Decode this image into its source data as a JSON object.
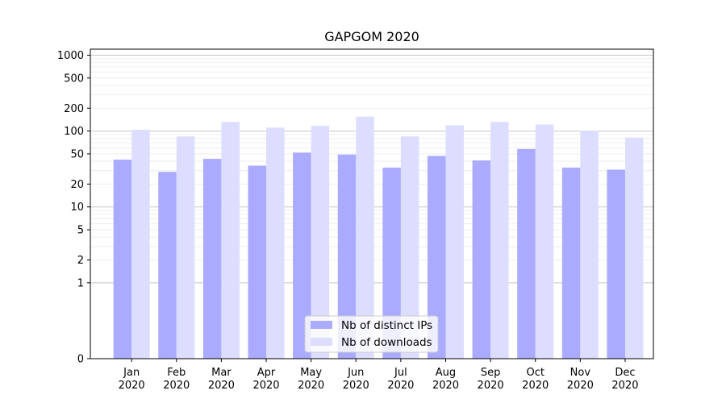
{
  "chart_data": {
    "type": "bar",
    "title": "GAPGOM 2020",
    "xlabel": "",
    "ylabel": "",
    "yscale": "symlog",
    "ylim": [
      0,
      1200
    ],
    "yticks": [
      0,
      1,
      2,
      5,
      10,
      20,
      50,
      100,
      200,
      500,
      1000
    ],
    "ytick_labels": [
      "0",
      "1",
      "2",
      "5",
      "10",
      "20",
      "50",
      "100",
      "200",
      "500",
      "1000"
    ],
    "grid": true,
    "legend_position": "bottom-center",
    "categories": [
      {
        "month": "Jan",
        "year": "2020"
      },
      {
        "month": "Feb",
        "year": "2020"
      },
      {
        "month": "Mar",
        "year": "2020"
      },
      {
        "month": "Apr",
        "year": "2020"
      },
      {
        "month": "May",
        "year": "2020"
      },
      {
        "month": "Jun",
        "year": "2020"
      },
      {
        "month": "Jul",
        "year": "2020"
      },
      {
        "month": "Aug",
        "year": "2020"
      },
      {
        "month": "Sep",
        "year": "2020"
      },
      {
        "month": "Oct",
        "year": "2020"
      },
      {
        "month": "Nov",
        "year": "2020"
      },
      {
        "month": "Dec",
        "year": "2020"
      }
    ],
    "series": [
      {
        "name": "Nb of distinct IPs",
        "color": "#aaaaff",
        "values": [
          42,
          29,
          43,
          35,
          52,
          49,
          33,
          47,
          41,
          58,
          33,
          31
        ]
      },
      {
        "name": "Nb of downloads",
        "color": "#ddddff",
        "values": [
          104,
          85,
          132,
          111,
          117,
          155,
          85,
          119,
          132,
          122,
          101,
          82
        ]
      }
    ]
  }
}
